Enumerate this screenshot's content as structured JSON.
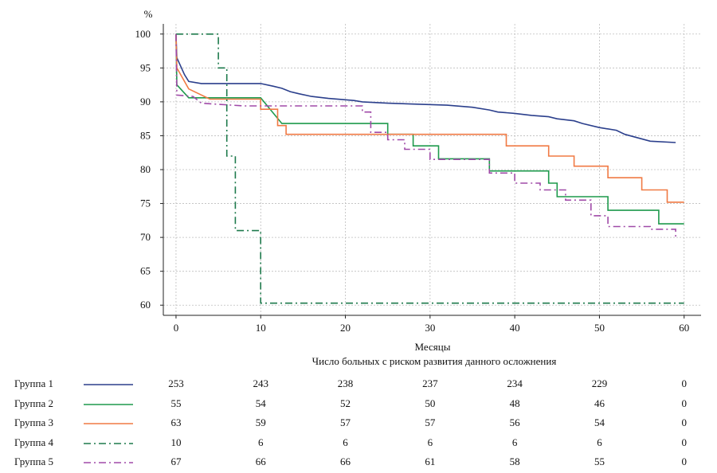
{
  "chart_data": {
    "type": "line",
    "step": true,
    "ylabel": "%",
    "xlabel": "Месяцы",
    "xlim": [
      -1.5,
      62
    ],
    "ylim": [
      58.5,
      101.5
    ],
    "x_ticks": [
      0,
      10,
      20,
      30,
      40,
      50,
      60
    ],
    "y_ticks": [
      60,
      65,
      70,
      75,
      80,
      85,
      90,
      95,
      100
    ],
    "grid": true,
    "series": [
      {
        "name": "Группа 1",
        "color": "#2b3f8c",
        "dash": "solid",
        "points": [
          [
            0,
            100
          ],
          [
            0.1,
            96.5
          ],
          [
            1,
            94
          ],
          [
            1.5,
            93
          ],
          [
            3,
            92.7
          ],
          [
            10,
            92.7
          ],
          [
            11.5,
            92.3
          ],
          [
            12.5,
            92
          ],
          [
            13.5,
            91.5
          ],
          [
            14.5,
            91.2
          ],
          [
            16,
            90.8
          ],
          [
            18,
            90.5
          ],
          [
            21,
            90.2
          ],
          [
            22,
            90
          ],
          [
            25,
            89.8
          ],
          [
            32,
            89.5
          ],
          [
            35,
            89.2
          ],
          [
            37,
            88.8
          ],
          [
            38,
            88.5
          ],
          [
            40,
            88.3
          ],
          [
            42,
            88
          ],
          [
            44,
            87.8
          ],
          [
            45,
            87.5
          ],
          [
            47,
            87.2
          ],
          [
            48,
            86.8
          ],
          [
            50,
            86.2
          ],
          [
            52,
            85.8
          ],
          [
            53,
            85.2
          ],
          [
            56,
            84.2
          ],
          [
            59,
            84
          ]
        ]
      },
      {
        "name": "Группа 2",
        "color": "#1e9a4c",
        "dash": "solid",
        "points": [
          [
            0,
            100
          ],
          [
            0.1,
            92.5
          ],
          [
            1.5,
            90.6
          ],
          [
            10,
            90.6
          ],
          [
            12.5,
            86.8
          ],
          [
            25,
            86.8
          ],
          [
            25,
            85.2
          ],
          [
            28,
            85.2
          ],
          [
            28,
            83.5
          ],
          [
            31,
            83.5
          ],
          [
            31,
            81.6
          ],
          [
            37,
            81.6
          ],
          [
            37,
            79.8
          ],
          [
            44,
            79.8
          ],
          [
            44,
            78
          ],
          [
            45,
            78
          ],
          [
            45,
            76
          ],
          [
            51,
            76
          ],
          [
            51,
            74
          ],
          [
            57,
            74
          ],
          [
            57,
            72
          ],
          [
            60,
            72
          ]
        ]
      },
      {
        "name": "Группа 3",
        "color": "#f07a44",
        "dash": "solid",
        "points": [
          [
            0,
            100
          ],
          [
            0.1,
            95
          ],
          [
            1.5,
            91.9
          ],
          [
            4,
            90.4
          ],
          [
            10,
            90.4
          ],
          [
            10,
            88.9
          ],
          [
            12,
            88.9
          ],
          [
            12,
            86.5
          ],
          [
            13,
            86.5
          ],
          [
            13,
            85.2
          ],
          [
            39,
            85.2
          ],
          [
            39,
            83.5
          ],
          [
            44,
            83.5
          ],
          [
            44,
            82
          ],
          [
            47,
            82
          ],
          [
            47,
            80.5
          ],
          [
            51,
            80.5
          ],
          [
            51,
            78.8
          ],
          [
            55,
            78.8
          ],
          [
            55,
            77
          ],
          [
            58,
            77
          ],
          [
            58,
            75.2
          ],
          [
            60,
            75.2
          ]
        ]
      },
      {
        "name": "Группа 4",
        "color": "#1e7a4c",
        "dash": "dashdot",
        "points": [
          [
            0,
            100
          ],
          [
            5,
            100
          ],
          [
            5,
            95
          ],
          [
            6,
            95
          ],
          [
            6,
            82
          ],
          [
            7,
            82
          ],
          [
            7,
            71
          ],
          [
            10,
            71
          ],
          [
            10,
            60.3
          ],
          [
            60,
            60.3
          ]
        ]
      },
      {
        "name": "Группа 5",
        "color": "#a04aa8",
        "dash": "dashdot",
        "points": [
          [
            0,
            100
          ],
          [
            0.1,
            91
          ],
          [
            2,
            90.8
          ],
          [
            3,
            89.8
          ],
          [
            8,
            89.4
          ],
          [
            22,
            89.4
          ],
          [
            22,
            88.5
          ],
          [
            23,
            88.5
          ],
          [
            23,
            85.5
          ],
          [
            25,
            85.5
          ],
          [
            25,
            84.4
          ],
          [
            27,
            84.4
          ],
          [
            27,
            83
          ],
          [
            30,
            83
          ],
          [
            30,
            81.5
          ],
          [
            37,
            81.5
          ],
          [
            37,
            79.5
          ],
          [
            40,
            79.5
          ],
          [
            40,
            78
          ],
          [
            43,
            78
          ],
          [
            43,
            77
          ],
          [
            46,
            77
          ],
          [
            46,
            75.5
          ],
          [
            49,
            75.5
          ],
          [
            49,
            73.2
          ],
          [
            51,
            73.2
          ],
          [
            51,
            71.6
          ],
          [
            56,
            71.6
          ],
          [
            56,
            71.2
          ],
          [
            59,
            71.2
          ],
          [
            59,
            70
          ]
        ]
      }
    ]
  },
  "risk_table": {
    "title": "Число больных с риском развития данного осложнения",
    "time_points": [
      0,
      10,
      20,
      30,
      40,
      50,
      60
    ],
    "groups": [
      {
        "name": "Группа 1",
        "counts": [
          "253",
          "243",
          "238",
          "237",
          "234",
          "229",
          "0"
        ]
      },
      {
        "name": "Группа 2",
        "counts": [
          "55",
          "54",
          "52",
          "50",
          "48",
          "46",
          "0"
        ]
      },
      {
        "name": "Группа 3",
        "counts": [
          "63",
          "59",
          "57",
          "57",
          "56",
          "54",
          "0"
        ]
      },
      {
        "name": "Группа 4",
        "counts": [
          "10",
          "6",
          "6",
          "6",
          "6",
          "6",
          "0"
        ]
      },
      {
        "name": "Группа 5",
        "counts": [
          "67",
          "66",
          "66",
          "61",
          "58",
          "55",
          "0"
        ]
      }
    ]
  }
}
